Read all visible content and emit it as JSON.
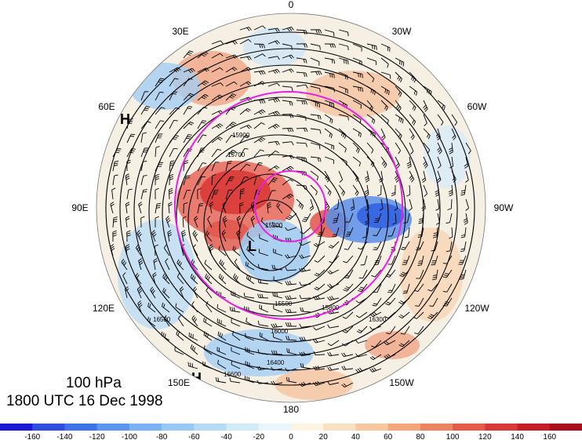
{
  "title": {
    "level": "100 hPa",
    "time": "1800 UTC 16 Dec 1998"
  },
  "longitude_labels": [
    {
      "id": "lon-0",
      "text": "0"
    },
    {
      "id": "lon-30w",
      "text": "30W"
    },
    {
      "id": "lon-60w",
      "text": "60W"
    },
    {
      "id": "lon-90w",
      "text": "90W"
    },
    {
      "id": "lon-120w",
      "text": "120W"
    },
    {
      "id": "lon-150w",
      "text": "150W"
    },
    {
      "id": "lon-180",
      "text": "180"
    },
    {
      "id": "lon-150e",
      "text": "150E"
    },
    {
      "id": "lon-120e",
      "text": "120E"
    },
    {
      "id": "lon-90e",
      "text": "90E"
    },
    {
      "id": "lon-60e",
      "text": "60E"
    },
    {
      "id": "lon-30e",
      "text": "30E"
    }
  ],
  "pressure_centers": [
    {
      "id": "high-60e",
      "text": "H"
    },
    {
      "id": "high-150e",
      "text": "H"
    },
    {
      "id": "low-center",
      "text": "L"
    }
  ],
  "contour_labels": [
    "15200",
    "15500",
    "15700",
    "15800",
    "15900",
    "16000",
    "16300",
    "16400",
    "16500",
    "16600"
  ],
  "colorbar": {
    "ticks": [
      "-160",
      "-140",
      "-120",
      "-100",
      "-80",
      "-60",
      "-40",
      "-20",
      "0",
      "20",
      "40",
      "60",
      "80",
      "100",
      "120",
      "140",
      "160"
    ],
    "colors": [
      "#1a1ad4",
      "#2e4fe0",
      "#3f74e8",
      "#5a95ee",
      "#7ab1f2",
      "#98c8f5",
      "#b5dbf7",
      "#d2ebf9",
      "#eaf5fb",
      "#fdf3e2",
      "#fbe1c2",
      "#f8c79f",
      "#f3a67c",
      "#ec8462",
      "#e45b4a",
      "#d83838",
      "#c41f28",
      "#a8101c"
    ]
  },
  "map_colors": {
    "ring": "#e620e6",
    "contour": "#000000",
    "warm": "#e0403a",
    "cold": "#3a6fe0"
  }
}
